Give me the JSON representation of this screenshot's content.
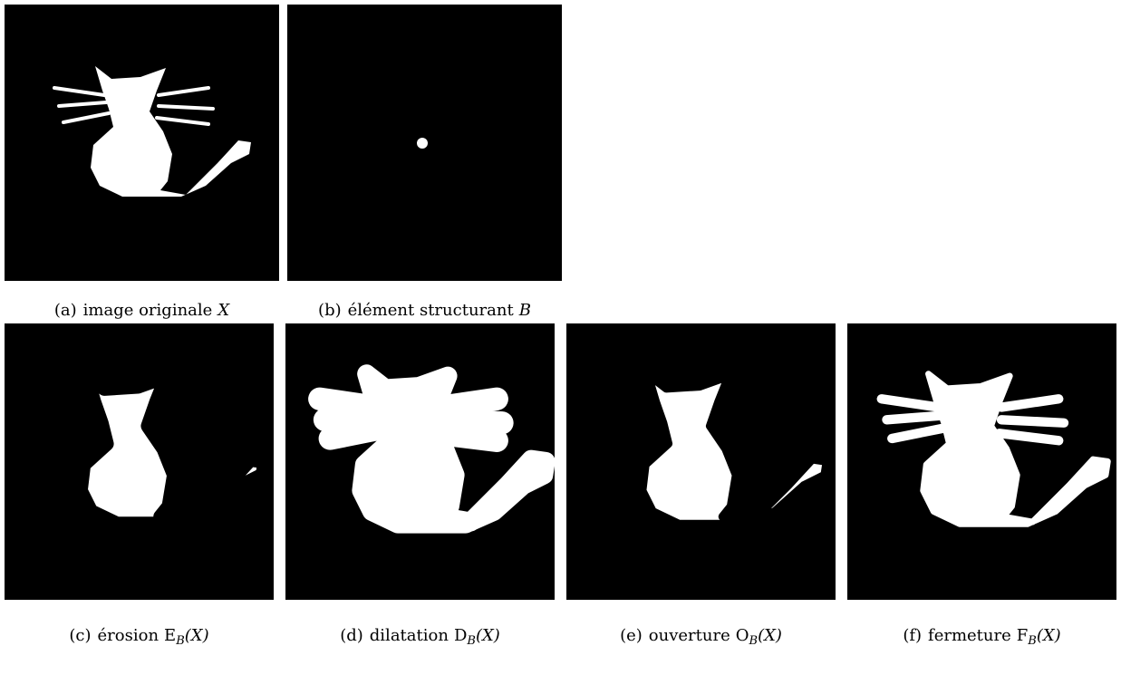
{
  "figure": {
    "panels": [
      {
        "label": "(a)",
        "text": "image originale",
        "math": "X"
      },
      {
        "label": "(b)",
        "text": "élément structurant",
        "math": "B"
      },
      {
        "label": "(c)",
        "text": "érosion",
        "op": "E",
        "sub": "B",
        "arg": "(X)"
      },
      {
        "label": "(d)",
        "text": "dilatation",
        "op": "D",
        "sub": "B",
        "arg": "(X)"
      },
      {
        "label": "(e)",
        "text": "ouverture",
        "op": "O",
        "sub": "B",
        "arg": "(X)"
      },
      {
        "label": "(f)",
        "text": "fermeture",
        "op": "F",
        "sub": "B",
        "arg": "(X)"
      }
    ]
  }
}
